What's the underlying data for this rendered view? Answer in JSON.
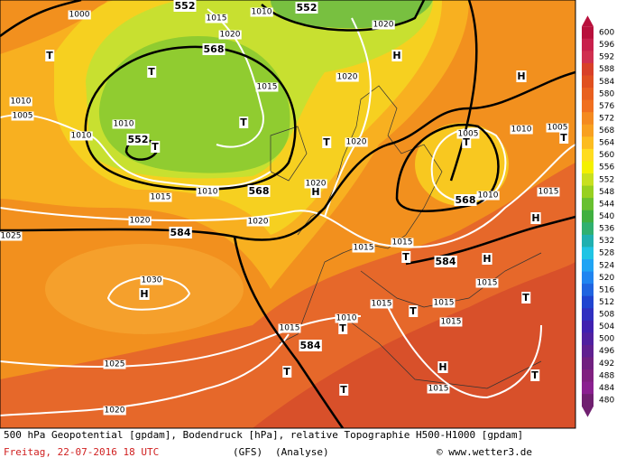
{
  "map": {
    "labels": [
      "552",
      "552",
      "1015",
      "1010",
      "1000",
      "1020",
      "1020",
      "T",
      "T",
      "568",
      "H",
      "1015",
      "1020",
      "1010",
      "1005",
      "1010",
      "1010",
      "552",
      "T",
      "T",
      "1020",
      "T",
      "1005",
      "T",
      "1010",
      "1005",
      "T",
      "H",
      "1015",
      "1010",
      "568",
      "1020",
      "H",
      "568",
      "1010",
      "1015",
      "1020",
      "584",
      "1020",
      "H",
      "1015",
      "1015",
      "T",
      "584",
      "H",
      "1015",
      "1030",
      "H",
      "1015",
      "1015",
      "T",
      "1015",
      "T",
      "1010",
      "T",
      "1015",
      "584",
      "1025",
      "T",
      "H",
      "1015",
      "T",
      "T",
      "1020",
      "1025"
    ]
  },
  "colorbar": {
    "levels": [
      600,
      596,
      592,
      588,
      584,
      580,
      576,
      572,
      568,
      564,
      560,
      556,
      552,
      548,
      544,
      540,
      536,
      532,
      528,
      524,
      520,
      516,
      512,
      508,
      504,
      500,
      496,
      492,
      488,
      484,
      480
    ],
    "colors": [
      "#b8103c",
      "#c8204c",
      "#d03050",
      "#d84028",
      "#e05020",
      "#e86020",
      "#f07020",
      "#f48a20",
      "#f8a020",
      "#fcbc20",
      "#ffdc20",
      "#f4f000",
      "#c8e020",
      "#98d020",
      "#68c030",
      "#40b040",
      "#30b070",
      "#20b0b0",
      "#20c4e4",
      "#20a4f4",
      "#2084f0",
      "#2064e0",
      "#2044d0",
      "#3030c0",
      "#4020b0",
      "#5020a0",
      "#602090",
      "#702080",
      "#802080",
      "#8a2090",
      "#702070"
    ]
  },
  "caption": {
    "line1": "500 hPa Geopotential [gpdam], Bodendruck [hPa], relative Topographie H500-H1000 [gpdam]",
    "date": "Freitag, 22-07-2016  18 UTC",
    "model": "(GFS)",
    "run": "(Analyse)",
    "site": "© www.wetter3.de"
  }
}
